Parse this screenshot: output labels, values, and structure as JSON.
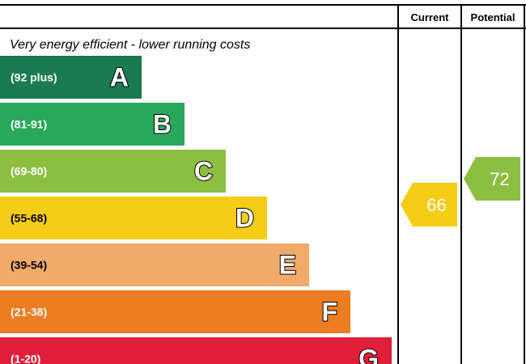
{
  "chart_data": {
    "type": "bar",
    "title": "",
    "intro": "Very energy efficient - lower running costs",
    "columns": {
      "current": "Current",
      "potential": "Potential"
    },
    "bands": [
      {
        "letter": "A",
        "range": "(92 plus)",
        "min": 92,
        "max": 100,
        "color": "#1a7a50"
      },
      {
        "letter": "B",
        "range": "(81-91)",
        "min": 81,
        "max": 91,
        "color": "#2aa85a"
      },
      {
        "letter": "C",
        "range": "(69-80)",
        "min": 69,
        "max": 80,
        "color": "#8cbe42"
      },
      {
        "letter": "D",
        "range": "(55-68)",
        "min": 55,
        "max": 68,
        "color": "#f5cc16"
      },
      {
        "letter": "E",
        "range": "(39-54)",
        "min": 39,
        "max": 54,
        "color": "#f0aa6a"
      },
      {
        "letter": "F",
        "range": "(21-38)",
        "min": 21,
        "max": 38,
        "color": "#ed7d22"
      },
      {
        "letter": "G",
        "range": "(1-20)",
        "min": 1,
        "max": 20,
        "color": "#e0203a"
      }
    ],
    "current": {
      "value": 66,
      "label": "66",
      "band": "D",
      "color": "#f5cc16"
    },
    "potential": {
      "value": 72,
      "label": "72",
      "band": "C",
      "color": "#8cbe42"
    }
  }
}
